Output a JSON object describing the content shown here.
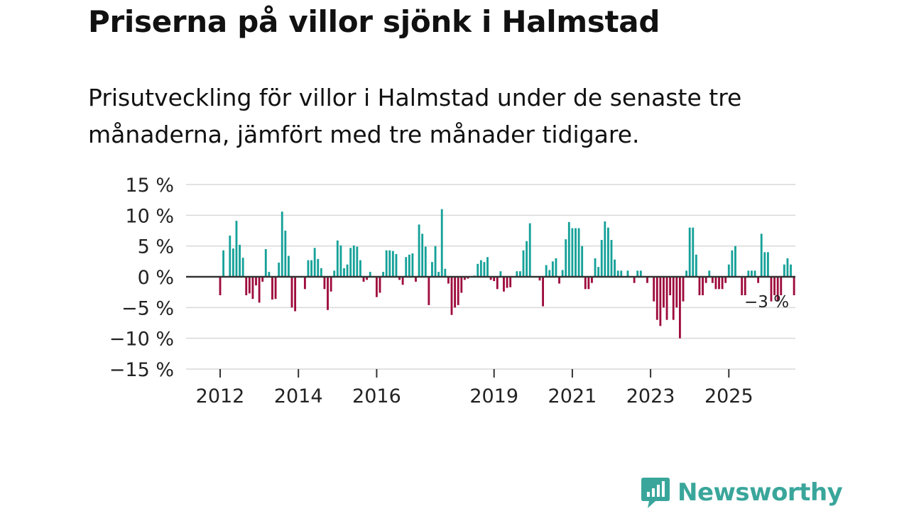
{
  "title": "Priserna på villor sjönk i Halmstad",
  "subtitle": "Prisutveckling för villor i Halmstad under de senaste tre månaderna, jämfört med tre månader tidigare.",
  "brand": {
    "name": "Newsworthy"
  },
  "colors": {
    "positive": "#15a199",
    "negative": "#9e0b3c",
    "grid": "#d9d9d9",
    "zero": "#333333",
    "text": "#222222",
    "brand": "#3aa69b"
  },
  "chart_data": {
    "type": "bar",
    "title": "Priserna på villor sjönk i Halmstad",
    "xlabel": "",
    "ylabel": "",
    "ylim": [
      -15,
      15
    ],
    "y_ticks": [
      15,
      10,
      5,
      0,
      -5,
      -10,
      -15
    ],
    "y_tick_labels": [
      "15 %",
      "10 %",
      "5 %",
      "0 %",
      "−5 %",
      "−10 %",
      "−15 %"
    ],
    "x_ticks": [
      2012,
      2014,
      2016,
      2019,
      2021,
      2023,
      2025
    ],
    "x_tick_labels": [
      "2012",
      "2014",
      "2016",
      "2019",
      "2021",
      "2023",
      "2025"
    ],
    "annotation": {
      "text": "−3 %",
      "target": "last"
    },
    "series": [
      {
        "name": "Prisutveckling",
        "start": 2012.0,
        "step_months": 1,
        "values": [
          -3,
          4.3,
          0,
          6.7,
          4.6,
          9.1,
          5.2,
          3.1,
          -3,
          -2.7,
          -3.6,
          -1.4,
          -4.2,
          -0.8,
          4.5,
          0.8,
          -3.7,
          -3.6,
          2.3,
          10.6,
          7.5,
          3.4,
          -5,
          -5.6,
          0,
          0,
          -2,
          2.7,
          2.7,
          4.7,
          2.9,
          1.4,
          -2,
          -5.4,
          -2.4,
          1,
          5.9,
          5.1,
          1.4,
          2,
          4.7,
          5.1,
          4.9,
          2.7,
          -0.8,
          -0.5,
          0.8,
          0,
          -3.3,
          -2.6,
          0.8,
          4.3,
          4.3,
          4.2,
          3.7,
          -0.5,
          -1.3,
          3.2,
          3.6,
          3.8,
          -0.8,
          8.5,
          7,
          4.9,
          -4.6,
          2.4,
          5,
          0.8,
          11,
          1.3,
          -1.1,
          -6.2,
          -5,
          -4.6,
          -2.6,
          -0.5,
          -0.3,
          0,
          0.2,
          2.1,
          2.7,
          2.4,
          3.2,
          -0.5,
          -0.7,
          -2,
          0.9,
          -2.4,
          -1.8,
          -1.7,
          0,
          0.9,
          0.9,
          4.3,
          5.8,
          8.7,
          0,
          0,
          -0.6,
          -4.8,
          1.9,
          1.1,
          2.5,
          3,
          -1.1,
          1.1,
          6.1,
          8.9,
          7.9,
          7.9,
          7.9,
          5,
          -2,
          -2,
          -1,
          3,
          1.6,
          6,
          9,
          8,
          6,
          2.8,
          1,
          1,
          0,
          1,
          0,
          -1,
          1,
          1,
          0,
          -1,
          0,
          -4,
          -7,
          -8,
          -5,
          -7,
          -3,
          -7,
          -5,
          -10,
          -4,
          1,
          8,
          8,
          3.6,
          -3,
          -3,
          -1,
          1,
          -1,
          -2,
          -2,
          -2,
          -1,
          2,
          4.3,
          5,
          0,
          -3,
          -3,
          1,
          1,
          1,
          -1,
          7,
          4,
          4,
          -4,
          -3,
          -4,
          -3,
          2,
          3,
          2,
          -3
        ]
      }
    ]
  }
}
